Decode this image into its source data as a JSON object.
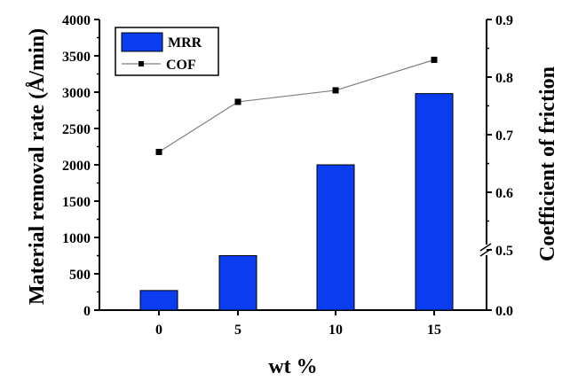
{
  "chart_data": {
    "type": "bar",
    "categories": [
      "0",
      "5",
      "10",
      "15"
    ],
    "xlabel": "wt %",
    "ylabel": "Material removal rate (Å/min)",
    "y2label": "Coefficient of friction",
    "ylim": [
      0,
      4000
    ],
    "y_ticks": [
      "0",
      "500",
      "1000",
      "1500",
      "2000",
      "2500",
      "3000",
      "3500",
      "4000"
    ],
    "y2_ticks": [
      "0.0",
      "0.5",
      "0.6",
      "0.7",
      "0.8",
      "0.9"
    ],
    "y2_scale": "broken axis: 0.0 to 0.5 compressed, linear 0.5 to 0.9",
    "grid": false,
    "legend_position": "top-left",
    "series": [
      {
        "name": "MRR",
        "kind": "bar",
        "axis": "left",
        "color": "#0a3cf0",
        "values": [
          270,
          750,
          2000,
          2980
        ]
      },
      {
        "name": "COF",
        "kind": "line",
        "axis": "right",
        "color": "#000000",
        "line_color": "#808080",
        "marker": "square",
        "values": [
          0.67,
          0.757,
          0.777,
          0.83
        ]
      }
    ]
  }
}
